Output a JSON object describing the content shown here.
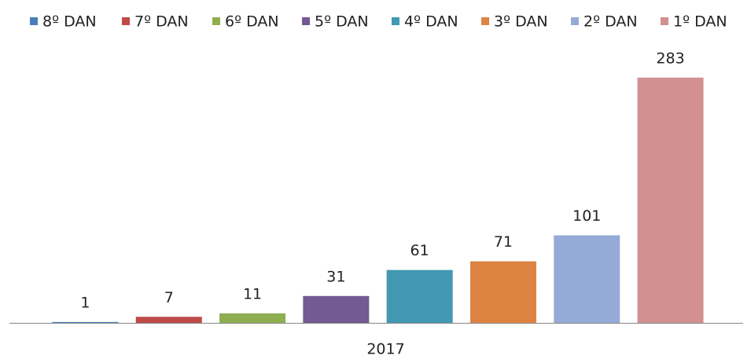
{
  "chart_data": {
    "type": "bar",
    "categories": [
      "2017"
    ],
    "series": [
      {
        "name": "8º DAN",
        "color": "#4a7ebb",
        "values": [
          1
        ]
      },
      {
        "name": "7º DAN",
        "color": "#be4b48",
        "values": [
          7
        ]
      },
      {
        "name": "6º DAN",
        "color": "#8fae52",
        "values": [
          11
        ]
      },
      {
        "name": "5º DAN",
        "color": "#735a93",
        "values": [
          31
        ]
      },
      {
        "name": "4º DAN",
        "color": "#4299b1",
        "values": [
          61
        ]
      },
      {
        "name": "3º DAN",
        "color": "#dd8442",
        "values": [
          71
        ]
      },
      {
        "name": "2º DAN",
        "color": "#95aad6",
        "values": [
          101
        ]
      },
      {
        "name": "1º DAN",
        "color": "#d39091",
        "values": [
          283
        ]
      }
    ],
    "ylim": [
      0,
      300
    ],
    "legend": "top"
  }
}
